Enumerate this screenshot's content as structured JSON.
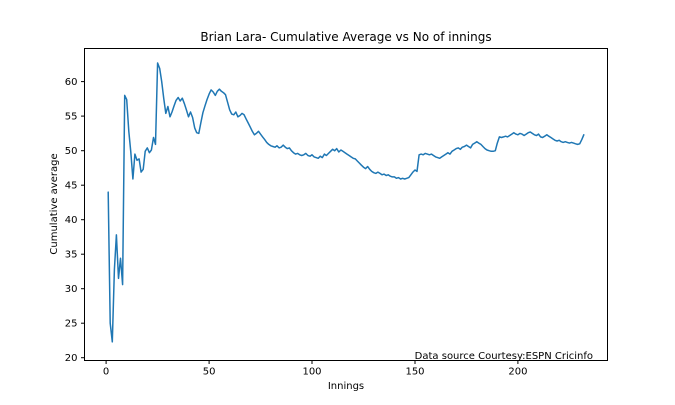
{
  "figure": {
    "title": "Brian Lara- Cumulative Average vs No of innings",
    "xlabel": "Innings",
    "ylabel": "Cumulative average",
    "annotation": "Data source Courtesy:ESPN Cricinfo"
  },
  "chart_data": {
    "type": "line",
    "title": "Brian Lara- Cumulative Average vs No of innings",
    "xlabel": "Innings",
    "ylabel": "Cumulative average",
    "annotation": "Data source Courtesy:ESPN Cricinfo",
    "line_color": "#1f77b4",
    "axis_color": "#000000",
    "grid": false,
    "legend": "none",
    "x_start": 1,
    "xlim": [
      -10.5,
      243.5
    ],
    "ylim": [
      19.6,
      64.8
    ],
    "xticks": [
      0,
      50,
      100,
      150,
      200
    ],
    "yticks": [
      20,
      25,
      30,
      35,
      40,
      45,
      50,
      55,
      60
    ],
    "series": [
      {
        "name": "cumulative average",
        "values": [
          44.0,
          25.0,
          22.3,
          32.8,
          37.8,
          31.5,
          34.4,
          30.6,
          58.0,
          57.4,
          52.8,
          49.8,
          45.9,
          49.5,
          48.6,
          48.8,
          46.9,
          47.3,
          49.9,
          50.4,
          49.7,
          50.1,
          51.9,
          50.9,
          62.7,
          61.9,
          60.0,
          57.5,
          55.4,
          56.4,
          54.9,
          55.6,
          56.5,
          57.3,
          57.7,
          57.2,
          57.6,
          56.8,
          55.9,
          54.9,
          55.6,
          54.8,
          53.3,
          52.6,
          52.5,
          54.0,
          55.5,
          56.5,
          57.4,
          58.2,
          58.8,
          58.5,
          58.0,
          58.6,
          58.9,
          58.6,
          58.4,
          58.1,
          57.0,
          55.9,
          55.3,
          55.2,
          55.6,
          54.9,
          55.1,
          55.4,
          55.2,
          54.6,
          54.0,
          53.4,
          52.8,
          52.3,
          52.5,
          52.8,
          52.4,
          52.0,
          51.6,
          51.2,
          50.9,
          50.7,
          50.6,
          50.5,
          50.7,
          50.4,
          50.5,
          50.8,
          50.5,
          50.3,
          50.4,
          50.0,
          49.7,
          49.5,
          49.6,
          49.4,
          49.3,
          49.4,
          49.6,
          49.3,
          49.2,
          49.4,
          49.1,
          49.0,
          48.9,
          49.2,
          49.0,
          49.5,
          49.3,
          49.6,
          49.9,
          50.2,
          50.0,
          50.3,
          49.8,
          50.1,
          49.9,
          49.7,
          49.5,
          49.3,
          49.1,
          48.9,
          48.8,
          48.5,
          48.2,
          47.9,
          47.6,
          47.4,
          47.7,
          47.3,
          47.0,
          46.8,
          46.7,
          46.9,
          46.7,
          46.5,
          46.6,
          46.4,
          46.5,
          46.3,
          46.2,
          46.2,
          46.0,
          46.1,
          45.9,
          46.0,
          45.9,
          46.0,
          46.1,
          46.5,
          46.9,
          47.2,
          47.0,
          49.4,
          49.5,
          49.4,
          49.6,
          49.5,
          49.4,
          49.5,
          49.3,
          49.1,
          49.0,
          48.9,
          49.1,
          49.3,
          49.5,
          49.7,
          49.5,
          49.9,
          50.1,
          50.3,
          50.4,
          50.2,
          50.5,
          50.6,
          50.8,
          50.6,
          50.4,
          50.9,
          51.1,
          51.3,
          51.1,
          50.9,
          50.6,
          50.3,
          50.1,
          50.0,
          49.9,
          49.9,
          50.0,
          51.1,
          52.0,
          51.9,
          52.0,
          52.1,
          52.0,
          52.2,
          52.4,
          52.6,
          52.4,
          52.3,
          52.5,
          52.4,
          52.2,
          52.4,
          52.6,
          52.7,
          52.5,
          52.3,
          52.2,
          52.4,
          52.0,
          51.9,
          52.1,
          52.3,
          52.1,
          51.9,
          51.7,
          51.5,
          51.4,
          51.5,
          51.3,
          51.2,
          51.3,
          51.2,
          51.1,
          51.2,
          51.1,
          51.0,
          50.9,
          51.0,
          51.6,
          52.3
        ]
      }
    ]
  }
}
